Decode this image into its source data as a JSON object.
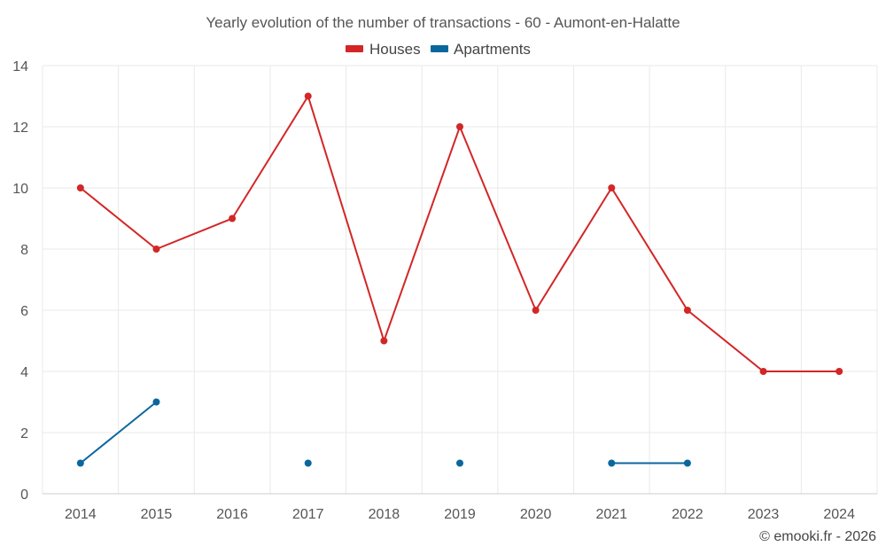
{
  "chart_data": {
    "type": "line",
    "title": "Yearly evolution of the number of transactions - 60 - Aumont-en-Halatte",
    "x": [
      "2014",
      "2015",
      "2016",
      "2017",
      "2018",
      "2019",
      "2020",
      "2021",
      "2022",
      "2023",
      "2024"
    ],
    "yticks": [
      "0",
      "2",
      "4",
      "6",
      "8",
      "10",
      "12",
      "14"
    ],
    "ylim": [
      0,
      14
    ],
    "xlabel": "",
    "ylabel": "",
    "grid": true,
    "legend_position": "top-center",
    "series": [
      {
        "name": "Houses",
        "color": "#d32626",
        "values": [
          10,
          8,
          9,
          13,
          5,
          12,
          6,
          10,
          6,
          4,
          4
        ]
      },
      {
        "name": "Apartments",
        "color": "#0a679e",
        "values": [
          1,
          3,
          null,
          1,
          null,
          1,
          null,
          1,
          1,
          null,
          null
        ]
      }
    ]
  },
  "credit": "© emooki.fr - 2026"
}
